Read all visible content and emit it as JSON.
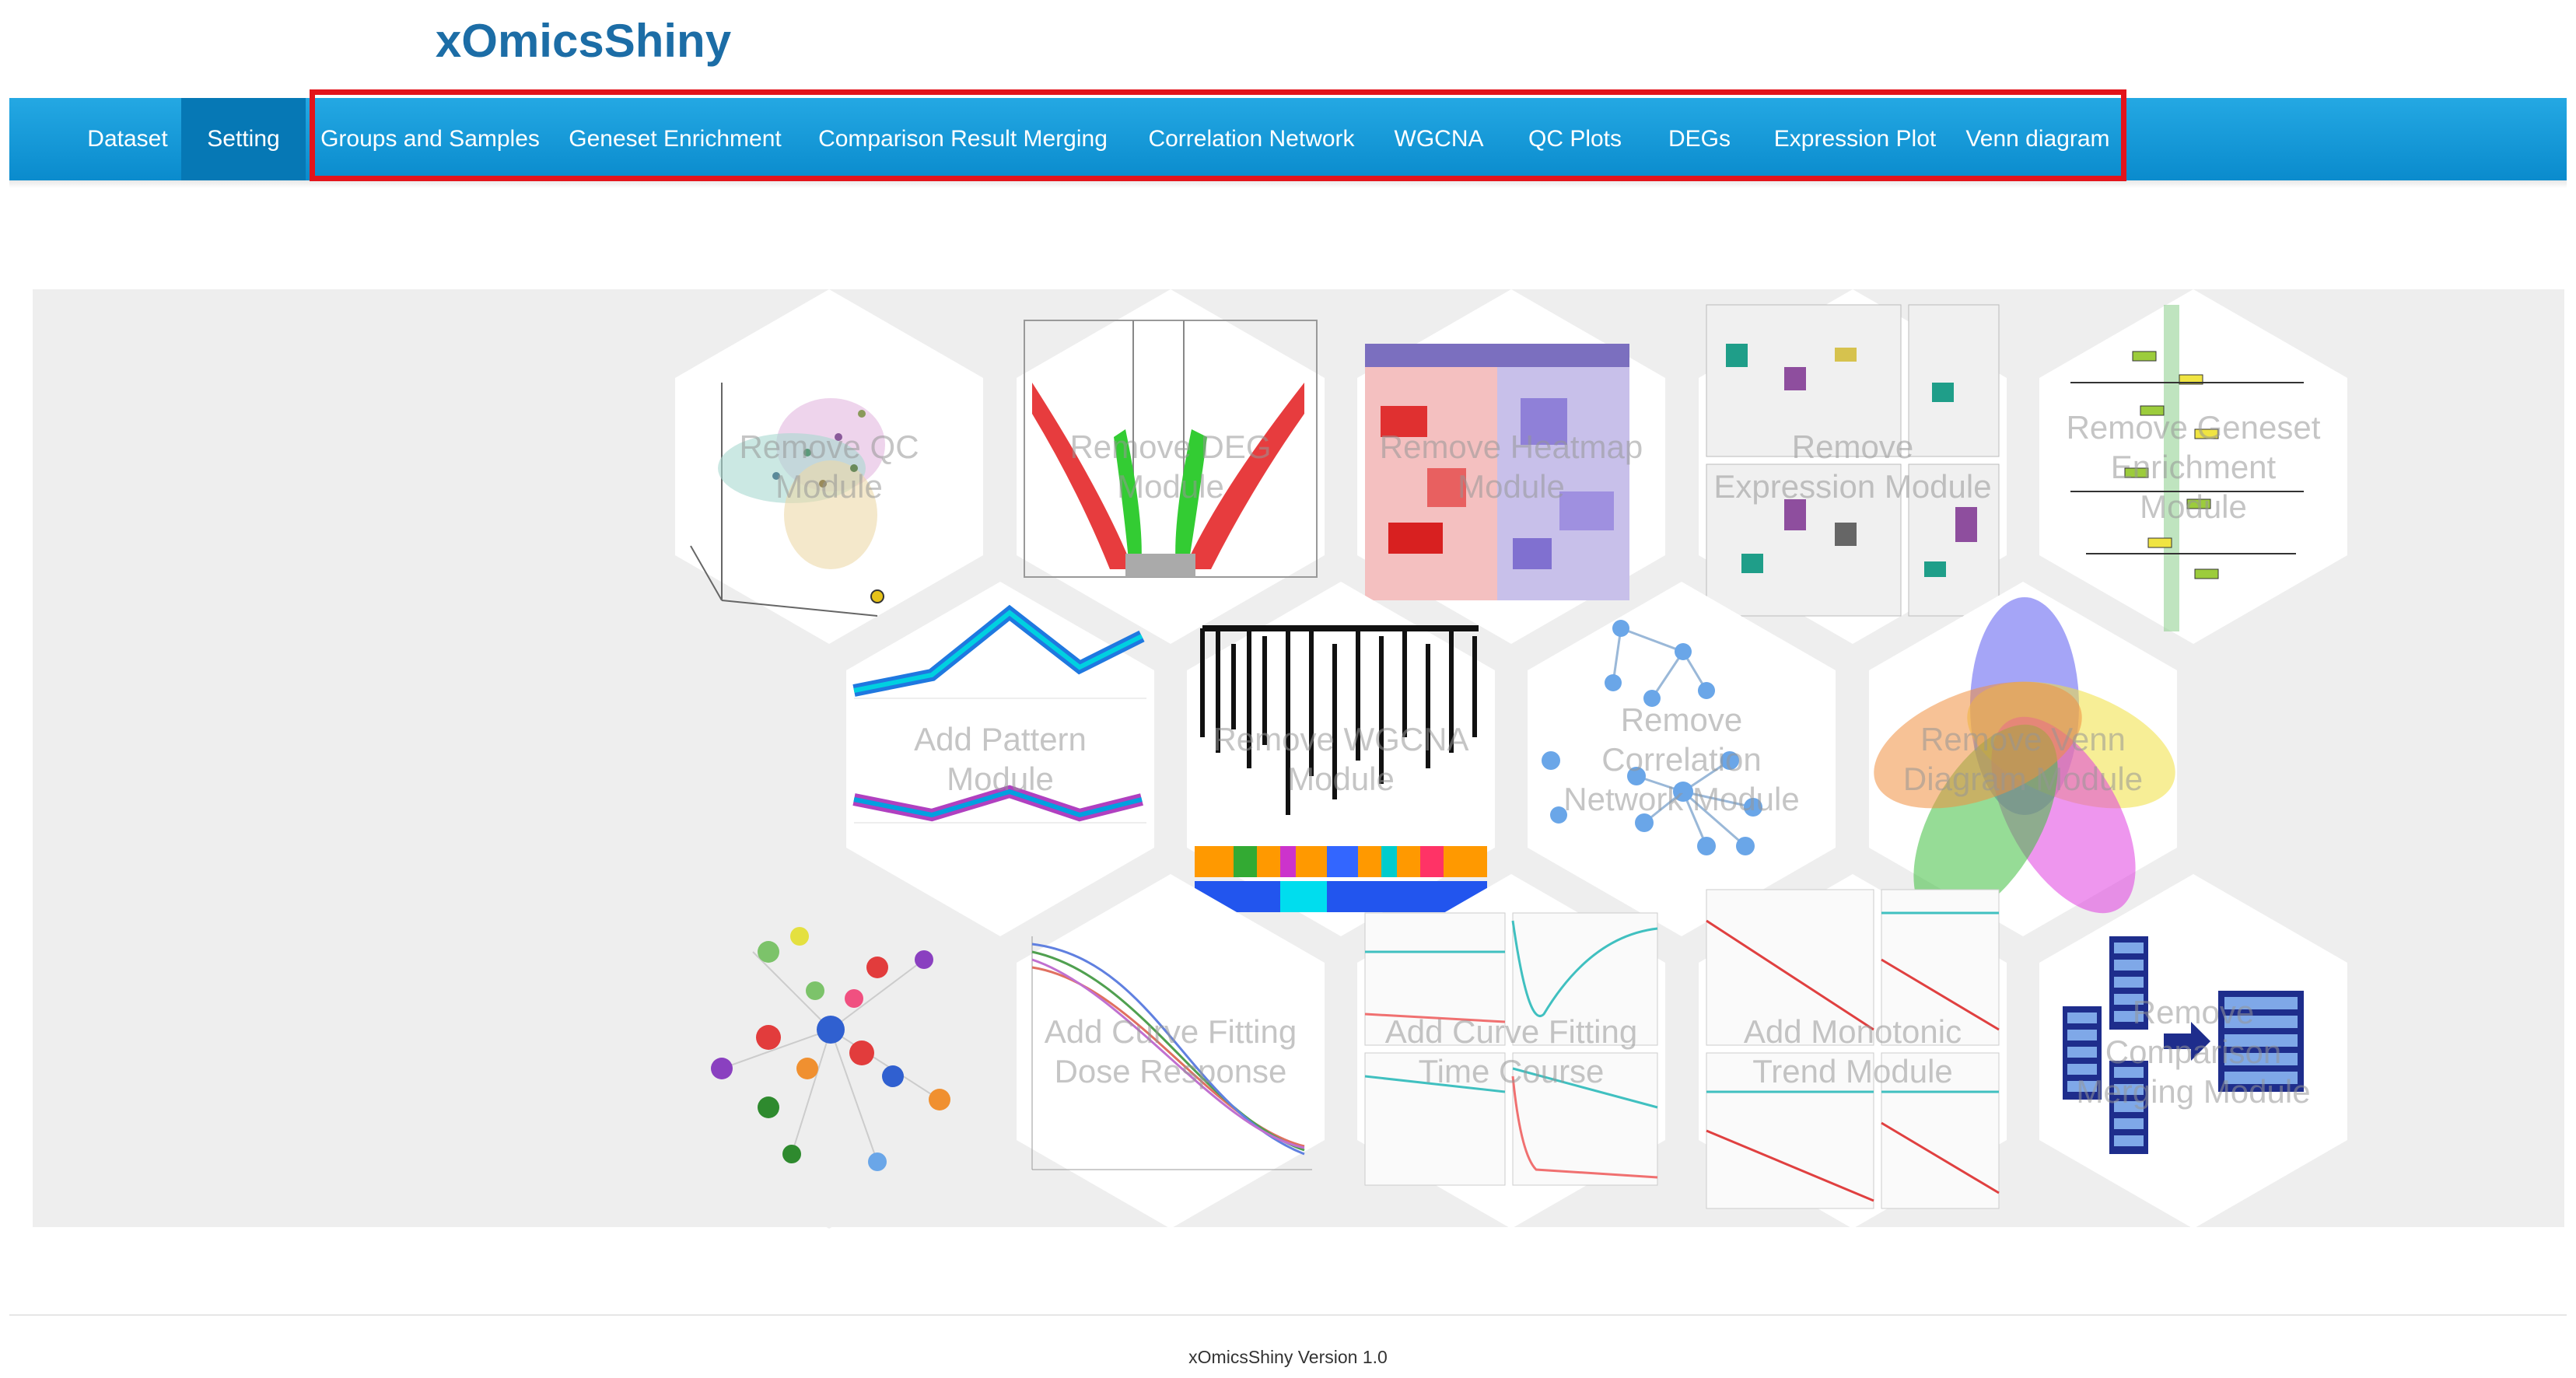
{
  "app": {
    "title": "xOmicsShiny",
    "version_text": "xOmicsShiny Version 1.0"
  },
  "colors": {
    "nav_bg": "#0a8bcd",
    "nav_active": "#0678b5",
    "highlight": "#e3141b",
    "title": "#1c6da6"
  },
  "nav": {
    "active": "Setting",
    "items": [
      {
        "label": "Dataset"
      },
      {
        "label": "Setting"
      },
      {
        "label": "Groups and Samples"
      },
      {
        "label": "Geneset Enrichment"
      },
      {
        "label": "Comparison Result Merging"
      },
      {
        "label": "Correlation Network"
      },
      {
        "label": "WGCNA"
      },
      {
        "label": "QC Plots"
      },
      {
        "label": "DEGs"
      },
      {
        "label": "Expression Plot"
      },
      {
        "label": "Venn diagram"
      }
    ]
  },
  "modules": {
    "row1": [
      {
        "label": "Remove QC Module",
        "icon": "pca-3d-plot-icon"
      },
      {
        "label": "Remove DEG Module",
        "icon": "volcano-plot-icon"
      },
      {
        "label": "Remove Heatmap Module",
        "icon": "heatmap-icon"
      },
      {
        "label": "Remove Expression Module",
        "icon": "boxplot-icon"
      },
      {
        "label": "Remove Geneset Enrichment Module",
        "icon": "pathway-map-icon"
      }
    ],
    "row2": [
      {
        "label": "Add Pattern Module",
        "icon": "pattern-lines-icon"
      },
      {
        "label": "Remove WGCNA Module",
        "icon": "dendrogram-icon"
      },
      {
        "label": "Remove Correlation Network Module",
        "icon": "network-graph-icon"
      },
      {
        "label": "Remove Venn Diagram Module",
        "icon": "venn-diagram-icon"
      }
    ],
    "row3": [
      {
        "label": "",
        "icon": "interaction-network-icon"
      },
      {
        "label": "Add Curve Fitting Dose Response",
        "icon": "dose-response-curve-icon"
      },
      {
        "label": "Add Curve Fitting Time Course",
        "icon": "time-course-curve-icon"
      },
      {
        "label": "Add Monotonic Trend Module",
        "icon": "trend-plot-icon"
      },
      {
        "label": "Remove Comparison Merging Module",
        "icon": "table-merge-icon"
      }
    ]
  }
}
